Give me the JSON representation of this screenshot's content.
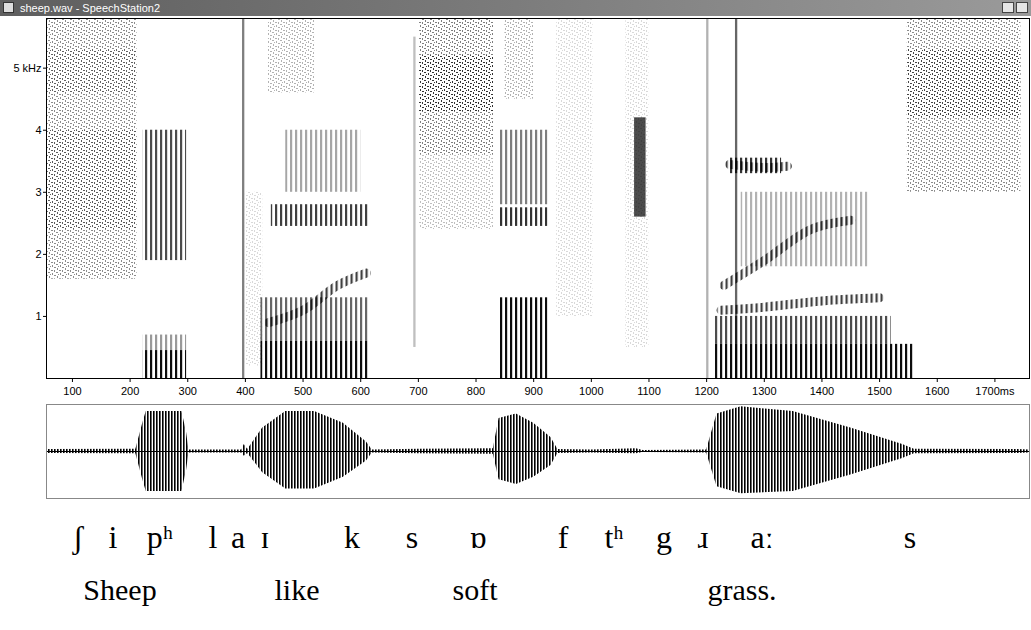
{
  "window_title": "sheep.wav - SpeechStation2",
  "chart_data": [
    {
      "type": "spectrogram",
      "xlim": [
        55,
        1760
      ],
      "xticks": [
        100,
        200,
        300,
        400,
        500,
        600,
        700,
        800,
        900,
        1000,
        1100,
        1200,
        1300,
        1400,
        1500,
        1600,
        {
          "value": 1700,
          "label": "1700ms"
        }
      ],
      "ylim": [
        0,
        5.8
      ],
      "yticks": [
        {
          "value": 5,
          "label": "5 kHz"
        },
        4,
        3,
        2,
        1
      ],
      "grid": false,
      "energy_range": [
        0,
        1
      ],
      "regions": [
        {
          "kind": "noise",
          "start": 57,
          "end": 212,
          "low": 1.6,
          "high": 5.8,
          "energy": 0.45
        },
        {
          "kind": "noise",
          "start": 57,
          "end": 212,
          "low": 2.4,
          "high": 4.0,
          "energy": 0.35
        },
        {
          "kind": "noise",
          "start": 57,
          "end": 212,
          "low": 4.6,
          "high": 5.3,
          "energy": 0.3
        },
        {
          "kind": "voiced",
          "start": 222,
          "end": 298,
          "low": 0,
          "high": 0.45,
          "energy": 0.95
        },
        {
          "kind": "voiced",
          "start": 222,
          "end": 298,
          "low": 0.45,
          "high": 0.7,
          "energy": 0.4
        },
        {
          "kind": "voiced",
          "start": 222,
          "end": 298,
          "low": 1.9,
          "high": 4.0,
          "energy": 0.7
        },
        {
          "kind": "burst",
          "start": 395,
          "end": 399,
          "low": 0,
          "high": 5.8,
          "energy": 0.5
        },
        {
          "kind": "noise",
          "start": 400,
          "end": 430,
          "low": 0.2,
          "high": 3.0,
          "energy": 0.15
        },
        {
          "kind": "voiced",
          "start": 427,
          "end": 616,
          "low": 0,
          "high": 0.6,
          "energy": 0.95
        },
        {
          "kind": "voiced",
          "start": 427,
          "end": 616,
          "low": 0.6,
          "high": 1.3,
          "energy": 0.6
        },
        {
          "kind": "voiced",
          "start": 445,
          "end": 616,
          "low": 2.45,
          "high": 2.8,
          "energy": 0.75
        },
        {
          "kind": "voiced",
          "start": 470,
          "end": 600,
          "low": 3.0,
          "high": 4.0,
          "energy": 0.35
        },
        {
          "kind": "noise",
          "start": 440,
          "end": 520,
          "low": 4.6,
          "high": 5.8,
          "energy": 0.3
        },
        {
          "kind": "burst",
          "start": 692,
          "end": 696,
          "low": 0.5,
          "high": 5.5,
          "energy": 0.25
        },
        {
          "kind": "noise",
          "start": 702,
          "end": 832,
          "low": 3.6,
          "high": 5.8,
          "energy": 0.5
        },
        {
          "kind": "noise",
          "start": 702,
          "end": 832,
          "low": 4.3,
          "high": 5.2,
          "energy": 0.6
        },
        {
          "kind": "noise",
          "start": 702,
          "end": 832,
          "low": 2.4,
          "high": 3.6,
          "energy": 0.25
        },
        {
          "kind": "voiced",
          "start": 840,
          "end": 925,
          "low": 0,
          "high": 1.3,
          "energy": 0.95
        },
        {
          "kind": "voiced",
          "start": 840,
          "end": 925,
          "low": 2.45,
          "high": 2.75,
          "energy": 0.8
        },
        {
          "kind": "voiced",
          "start": 840,
          "end": 925,
          "low": 2.8,
          "high": 4.0,
          "energy": 0.5
        },
        {
          "kind": "noise",
          "start": 850,
          "end": 900,
          "low": 4.5,
          "high": 5.8,
          "energy": 0.3
        },
        {
          "kind": "noise",
          "start": 940,
          "end": 1003,
          "low": 1.0,
          "high": 5.8,
          "energy": 0.15
        },
        {
          "kind": "noise",
          "start": 1060,
          "end": 1100,
          "low": 0.5,
          "high": 5.8,
          "energy": 0.15
        },
        {
          "kind": "burst",
          "start": 1075,
          "end": 1095,
          "low": 2.6,
          "high": 4.2,
          "energy": 0.7
        },
        {
          "kind": "burst",
          "start": 1200,
          "end": 1204,
          "low": 0,
          "high": 5.8,
          "energy": 0.3
        },
        {
          "kind": "voiced",
          "start": 1215,
          "end": 1560,
          "low": 0,
          "high": 0.55,
          "energy": 0.95
        },
        {
          "kind": "voiced",
          "start": 1215,
          "end": 1520,
          "low": 0.55,
          "high": 1.0,
          "energy": 0.7
        },
        {
          "kind": "burst",
          "start": 1250,
          "end": 1254,
          "low": 0,
          "high": 5.8,
          "energy": 0.6
        },
        {
          "kind": "voiced",
          "start": 1240,
          "end": 1330,
          "low": 3.3,
          "high": 3.55,
          "energy": 0.8
        },
        {
          "kind": "voiced",
          "start": 1260,
          "end": 1480,
          "low": 1.8,
          "high": 3.0,
          "energy": 0.3
        },
        {
          "kind": "noise",
          "start": 1548,
          "end": 1745,
          "low": 3.0,
          "high": 5.8,
          "energy": 0.45
        },
        {
          "kind": "noise",
          "start": 1548,
          "end": 1745,
          "low": 4.2,
          "high": 5.3,
          "energy": 0.5
        }
      ],
      "tracks": [
        {
          "t": [
            440,
            500,
            560,
            610
          ],
          "f": [
            0.9,
            1.1,
            1.5,
            1.7
          ]
        },
        {
          "t": [
            1225,
            1300,
            1400,
            1500
          ],
          "f": [
            1.1,
            1.15,
            1.25,
            1.3
          ]
        },
        {
          "t": [
            1230,
            1300,
            1380,
            1450
          ],
          "f": [
            1.5,
            1.9,
            2.4,
            2.55
          ]
        },
        {
          "t": [
            1240,
            1300,
            1340
          ],
          "f": [
            3.45,
            3.4,
            3.42
          ]
        }
      ]
    },
    {
      "type": "waveform",
      "xlim": [
        55,
        1760
      ],
      "ylim": [
        -1,
        1
      ],
      "tick_labels": false,
      "envelope": {
        "t": [
          55,
          210,
          222,
          228,
          290,
          298,
          302,
          394,
          398,
          404,
          430,
          470,
          520,
          570,
          610,
          620,
          700,
          830,
          840,
          870,
          900,
          930,
          942,
          1000,
          1078,
          1090,
          1200,
          1218,
          1260,
          1350,
          1450,
          1540,
          1560,
          1740,
          1760
        ],
        "upper": [
          0.04,
          0.05,
          0.6,
          0.85,
          0.85,
          0.4,
          0.03,
          0.03,
          0.15,
          0.04,
          0.5,
          0.85,
          0.85,
          0.6,
          0.2,
          0.03,
          0.05,
          0.06,
          0.7,
          0.8,
          0.6,
          0.3,
          0.04,
          0.03,
          0.06,
          0.02,
          0.03,
          0.8,
          0.95,
          0.85,
          0.5,
          0.15,
          0.05,
          0.04,
          0.03
        ],
        "lower": [
          -0.04,
          -0.05,
          -0.6,
          -0.85,
          -0.85,
          -0.4,
          -0.03,
          -0.03,
          -0.1,
          -0.04,
          -0.45,
          -0.8,
          -0.8,
          -0.55,
          -0.2,
          -0.03,
          -0.05,
          -0.06,
          -0.6,
          -0.7,
          -0.55,
          -0.3,
          -0.04,
          -0.03,
          -0.05,
          -0.02,
          -0.03,
          -0.75,
          -0.9,
          -0.85,
          -0.5,
          -0.15,
          -0.05,
          -0.04,
          -0.03
        ]
      }
    }
  ],
  "transcription": {
    "phones": [
      "ʃ",
      "i",
      "pʰ",
      "l",
      "a",
      "ɪ",
      "k",
      "s",
      "ɒ",
      "f",
      "tʰ",
      "g",
      "ɹ",
      "aː",
      "s"
    ],
    "words": [
      "Sheep",
      "like",
      "soft",
      "grass."
    ]
  }
}
